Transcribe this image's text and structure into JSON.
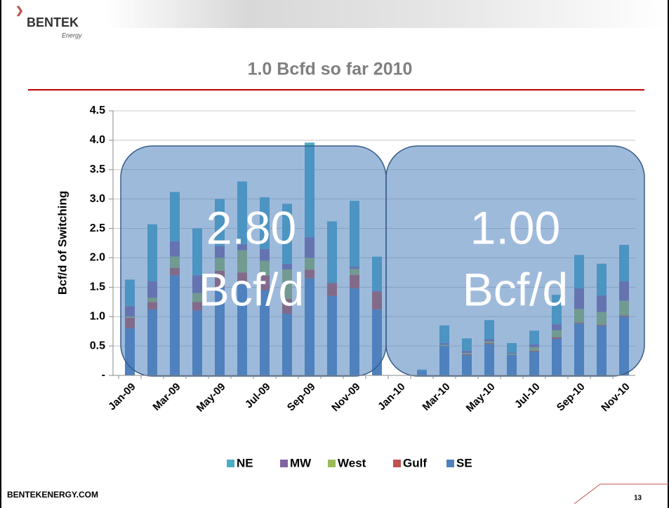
{
  "logo": {
    "name": "BENTEK",
    "sub": "Energy"
  },
  "footer": "BENTEKENERGY.COM",
  "page_number": "13",
  "chart_data": {
    "type": "bar",
    "stacked": true,
    "title": "1.0 Bcfd so far 2010",
    "y_label": "Bcf/d of Switching",
    "annotations": [
      [
        "2.80",
        "Bcf/d"
      ],
      [
        "1.00",
        "Bcf/d"
      ]
    ],
    "categories": [
      "Jan-09",
      null,
      "Mar-09",
      null,
      "May-09",
      null,
      "Jul-09",
      null,
      "Sep-09",
      null,
      "Nov-09",
      null,
      "Jan-10",
      null,
      "Mar-10",
      null,
      "May-10",
      null,
      "Jul-10",
      null,
      "Sep-10",
      null,
      "Nov-10"
    ],
    "series": [
      {
        "name": "NE",
        "color": "#4bacc6",
        "values": [
          0.45,
          0.97,
          0.84,
          0.8,
          0.8,
          1.07,
          0.88,
          1.02,
          1.61,
          1.05,
          1.12,
          0.58,
          0,
          0.02,
          0.3,
          0.21,
          0.32,
          0.16,
          0.23,
          0.5,
          0.57,
          0.54,
          0.62
        ]
      },
      {
        "name": "MW",
        "color": "#8064a2",
        "values": [
          0.18,
          0.28,
          0.26,
          0.3,
          0.2,
          0.1,
          0.2,
          0.1,
          0.35,
          0,
          0.04,
          0.02,
          0,
          0,
          0.03,
          0.04,
          0.04,
          0.02,
          0.05,
          0.1,
          0.35,
          0.28,
          0.33
        ]
      },
      {
        "name": "West",
        "color": "#9bbb59",
        "values": [
          0.02,
          0.07,
          0.19,
          0.15,
          0.22,
          0.38,
          0.25,
          0.5,
          0.2,
          0,
          0.1,
          0,
          0,
          0,
          0.02,
          0.02,
          0.03,
          0.02,
          0.06,
          0.12,
          0.23,
          0.22,
          0.25
        ]
      },
      {
        "name": "Gulf",
        "color": "#c0504d",
        "values": [
          0.18,
          0.13,
          0.13,
          0.15,
          0.28,
          0.2,
          0.25,
          0.25,
          0.15,
          0.22,
          0.23,
          0.3,
          0,
          0,
          0,
          0.02,
          0.02,
          0,
          0.02,
          0.03,
          0.02,
          0.02,
          0.02
        ]
      },
      {
        "name": "SE",
        "color": "#4f81bd",
        "values": [
          0.8,
          1.12,
          1.7,
          1.1,
          1.5,
          1.55,
          1.45,
          1.05,
          1.65,
          1.35,
          1.48,
          1.12,
          0,
          0.08,
          0.5,
          0.34,
          0.53,
          0.35,
          0.4,
          0.62,
          0.88,
          0.84,
          1.0
        ]
      }
    ],
    "ylim": [
      0,
      4.5
    ],
    "yticks": [
      {
        "value": 0,
        "label": "-"
      },
      0.5,
      {
        "value": 1,
        "label": "1.0"
      },
      1.5,
      {
        "value": 2,
        "label": "2.0"
      },
      2.5,
      {
        "value": 3,
        "label": "3.0"
      },
      3.5,
      {
        "value": 4,
        "label": "4.0"
      },
      4.5
    ],
    "grid": true
  }
}
